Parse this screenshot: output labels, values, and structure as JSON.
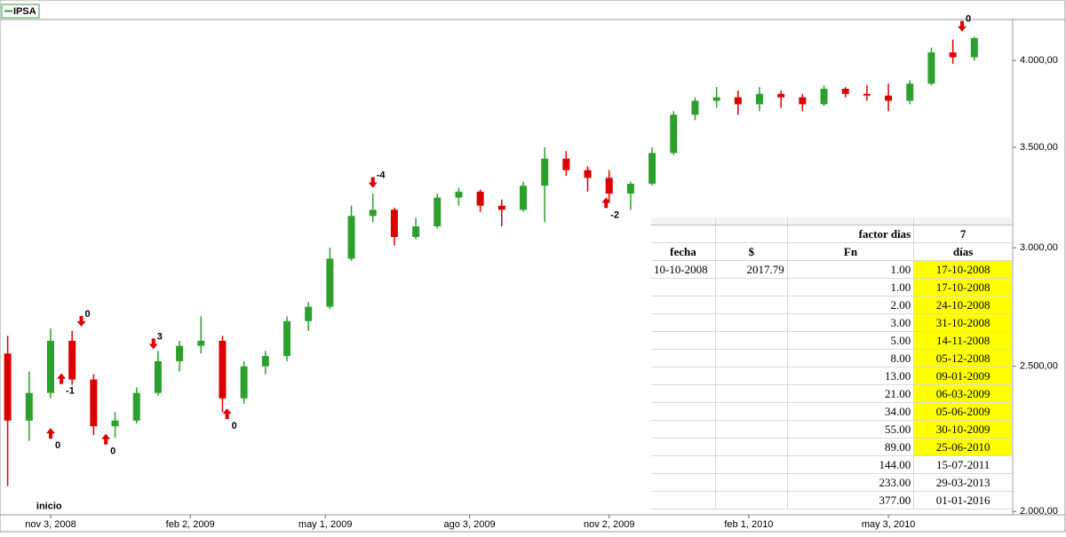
{
  "chart_data": {
    "type": "candlestick",
    "legend": "IPSA",
    "x": [
      "2008-10-06",
      "2008-10-20",
      "2008-11-03",
      "2008-11-17",
      "2008-12-01",
      "2008-12-15",
      "2008-12-29",
      "2009-01-12",
      "2009-01-26",
      "2009-02-09",
      "2009-02-23",
      "2009-03-09",
      "2009-03-23",
      "2009-04-06",
      "2009-04-20",
      "2009-05-04",
      "2009-05-18",
      "2009-06-01",
      "2009-06-15",
      "2009-06-29",
      "2009-07-13",
      "2009-07-27",
      "2009-08-10",
      "2009-08-24",
      "2009-09-07",
      "2009-09-21",
      "2009-10-05",
      "2009-10-19",
      "2009-11-02",
      "2009-11-16",
      "2009-11-30",
      "2009-12-14",
      "2009-12-28",
      "2010-01-11",
      "2010-01-25",
      "2010-02-08",
      "2010-02-22",
      "2010-03-08",
      "2010-03-22",
      "2010-04-05",
      "2010-04-19",
      "2010-05-03",
      "2010-05-17",
      "2010-05-31",
      "2010-06-14",
      "2010-06-28"
    ],
    "open": [
      2550,
      2300,
      2400,
      2600,
      2450,
      2280,
      2300,
      2400,
      2520,
      2580,
      2600,
      2380,
      2500,
      2540,
      2680,
      2740,
      2950,
      3150,
      3180,
      3050,
      3100,
      3240,
      3270,
      3200,
      3180,
      3300,
      3440,
      3380,
      3340,
      3260,
      3310,
      3470,
      3680,
      3760,
      3780,
      3740,
      3800,
      3780,
      3740,
      3830,
      3800,
      3790,
      3760,
      3860,
      4050,
      4020
    ],
    "high": [
      2620,
      2480,
      2650,
      2640,
      2470,
      2330,
      2420,
      2560,
      2600,
      2700,
      2620,
      2520,
      2560,
      2700,
      2760,
      3000,
      3200,
      3260,
      3190,
      3140,
      3260,
      3290,
      3280,
      3230,
      3320,
      3500,
      3480,
      3400,
      3380,
      3320,
      3500,
      3700,
      3780,
      3840,
      3820,
      3840,
      3820,
      3800,
      3850,
      3840,
      3850,
      3860,
      3880,
      4080,
      4130,
      4150
    ],
    "low": [
      2080,
      2230,
      2380,
      2430,
      2250,
      2240,
      2290,
      2390,
      2480,
      2550,
      2330,
      2360,
      2470,
      2520,
      2640,
      2730,
      2940,
      3120,
      3010,
      3040,
      3090,
      3200,
      3170,
      3100,
      3170,
      3120,
      3350,
      3270,
      3220,
      3180,
      3300,
      3460,
      3650,
      3720,
      3680,
      3700,
      3720,
      3700,
      3730,
      3780,
      3760,
      3700,
      3740,
      3850,
      3980,
      4000
    ],
    "close": [
      2300,
      2400,
      2600,
      2450,
      2280,
      2300,
      2400,
      2520,
      2580,
      2600,
      2380,
      2500,
      2540,
      2680,
      2740,
      2950,
      3150,
      3180,
      3050,
      3100,
      3240,
      3270,
      3200,
      3180,
      3300,
      3440,
      3380,
      3340,
      3260,
      3310,
      3470,
      3680,
      3760,
      3780,
      3740,
      3800,
      3780,
      3740,
      3830,
      3800,
      3790,
      3760,
      3860,
      4050,
      4020,
      4140
    ],
    "up_color": "#2ca02c",
    "down_color": "#dd0000",
    "xlim": [
      "2008-10-01",
      "2010-07-23"
    ],
    "xticks": [
      {
        "value": "2008-11-03",
        "label": "nov 3, 2008"
      },
      {
        "value": "2009-02-02",
        "label": "feb 2, 2009"
      },
      {
        "value": "2009-05-01",
        "label": "may 1, 2009"
      },
      {
        "value": "2009-08-03",
        "label": "ago 3, 2009"
      },
      {
        "value": "2009-11-02",
        "label": "nov 2, 2009"
      },
      {
        "value": "2010-02-01",
        "label": "feb 1, 2010"
      },
      {
        "value": "2010-05-03",
        "label": "may 3, 2010"
      }
    ],
    "ylim": [
      1990,
      4260
    ],
    "log_y": true,
    "yticks": [
      {
        "value": 2000,
        "label": "2.000,00"
      },
      {
        "value": 2500,
        "label": "2.500,00"
      },
      {
        "value": 3000,
        "label": "3.000,00"
      },
      {
        "value": 3500,
        "label": "3.500,00"
      },
      {
        "value": 4000,
        "label": "4.000,00"
      }
    ],
    "arrow_color": "#dd0000",
    "annotations": [
      {
        "text": "0",
        "x": "2008-11-03",
        "y": 2280,
        "dir": "up"
      },
      {
        "text": "-1",
        "x": "2008-11-10",
        "y": 2480,
        "dir": "up"
      },
      {
        "text": "0",
        "x": "2008-11-23",
        "y": 2650,
        "dir": "down"
      },
      {
        "text": "0",
        "x": "2008-12-09",
        "y": 2260,
        "dir": "up"
      },
      {
        "text": "3",
        "x": "2009-01-09",
        "y": 2560,
        "dir": "down"
      },
      {
        "text": "0",
        "x": "2009-02-26",
        "y": 2350,
        "dir": "up"
      },
      {
        "text": "-4",
        "x": "2009-06-01",
        "y": 3280,
        "dir": "down"
      },
      {
        "text": "-2",
        "x": "2009-10-31",
        "y": 3250,
        "dir": "up"
      },
      {
        "text": "0",
        "x": "2010-06-20",
        "y": 4170,
        "dir": "down"
      },
      {
        "text": "inicio",
        "x": "2008-11-02",
        "y": 2010,
        "dir": "none"
      }
    ]
  },
  "table": {
    "factor_label": "factor dias",
    "factor_value": "7",
    "header": [
      "fecha",
      "$",
      "Fn",
      "días"
    ],
    "rows": [
      [
        "10-10-2008",
        "2017.79",
        "1.00",
        "17-10-2008"
      ],
      [
        "",
        "",
        "1.00",
        "17-10-2008"
      ],
      [
        "",
        "",
        "2.00",
        "24-10-2008"
      ],
      [
        "",
        "",
        "3.00",
        "31-10-2008"
      ],
      [
        "",
        "",
        "5.00",
        "14-11-2008"
      ],
      [
        "",
        "",
        "8.00",
        "05-12-2008"
      ],
      [
        "",
        "",
        "13.00",
        "09-01-2009"
      ],
      [
        "",
        "",
        "21.00",
        "06-03-2009"
      ],
      [
        "",
        "",
        "34.00",
        "05-06-2009"
      ],
      [
        "",
        "",
        "55.00",
        "30-10-2009"
      ],
      [
        "",
        "",
        "89.00",
        "25-06-2010"
      ],
      [
        "",
        "",
        "144.00",
        "15-07-2011"
      ],
      [
        "",
        "",
        "233.00",
        "29-03-2013"
      ],
      [
        "",
        "",
        "377.00",
        "01-01-2016"
      ]
    ]
  }
}
